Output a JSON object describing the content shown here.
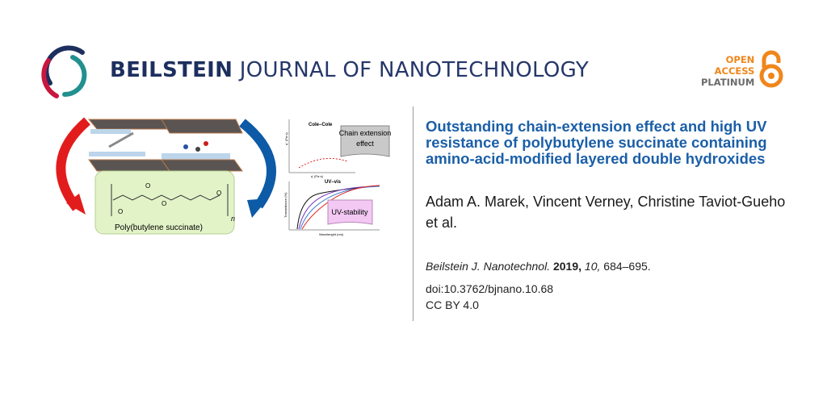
{
  "header": {
    "journal_bold": "BEILSTEIN",
    "journal_rest": "JOURNAL OF NANOTECHNOLOGY",
    "open_access": {
      "line1": "OPEN",
      "line2": "ACCESS",
      "line3": "PLATINUM"
    },
    "logo_colors": {
      "navy": "#1d2f5e",
      "red": "#c8173f",
      "teal": "#22908f"
    },
    "oa_color": "#f0861b"
  },
  "graphic": {
    "polymer_label": "Poly(butylene succinate)",
    "repeat_subscript": "n",
    "oxygen": "O",
    "cole_cole": "Cole–Cole",
    "chain_extension": [
      "Chain extension",
      "effect"
    ],
    "eta2_axis": "η'' (Pa·s)",
    "eta1_axis": "η' (Pa·s)",
    "uv_vis": "UV–vis",
    "transmittance_axis": "Transmitance (%)",
    "wavelength_axis": "Wavelenght (nm)",
    "uv_stability": "UV-stability"
  },
  "article": {
    "title": "Outstanding chain-extension effect and high UV resistance of polybutylene succinate containing amino-acid-modified layered double hydroxides",
    "authors": "Adam A. Marek, Vincent Verney, Christine Taviot-Gueho et al.",
    "citation": {
      "journal": "Beilstein J. Nanotechnol.",
      "year": "2019,",
      "volume": "10,",
      "pages": "684–695."
    },
    "doi": "doi:10.3762/bjnano.10.68",
    "license": "CC BY 4.0",
    "title_color": "#1b5fa8"
  }
}
